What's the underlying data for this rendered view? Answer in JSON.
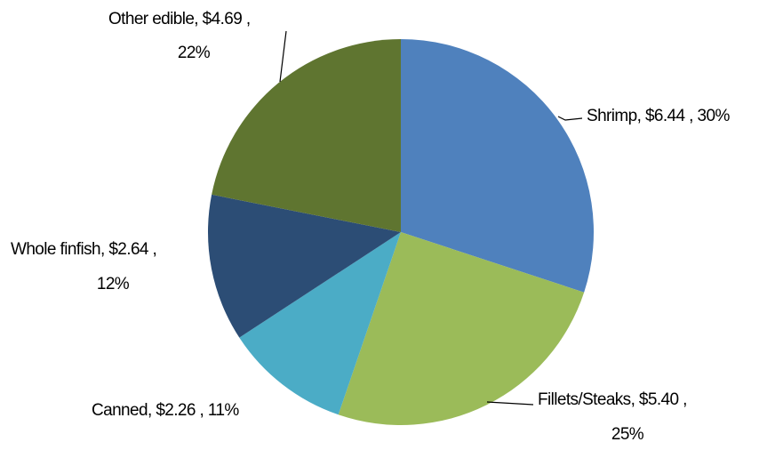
{
  "chart_data": {
    "type": "pie",
    "values": [
      6.44,
      5.4,
      2.26,
      2.64,
      4.69
    ],
    "value_labels": [
      [
        "Shrimp, $6.44 , 30%"
      ],
      [
        "Fillets/Steaks, $5.40 ,",
        "25%"
      ],
      [
        "Canned, $2.26 , 11%"
      ],
      [
        "Whole finfish, $2.64 ,",
        "12%"
      ],
      [
        "Other edible, $4.69 ,",
        "22%"
      ]
    ],
    "colors": [
      "#4f81bd",
      "#9bbb59",
      "#4bacc6",
      "#2c4d75",
      "#5f7530"
    ]
  }
}
